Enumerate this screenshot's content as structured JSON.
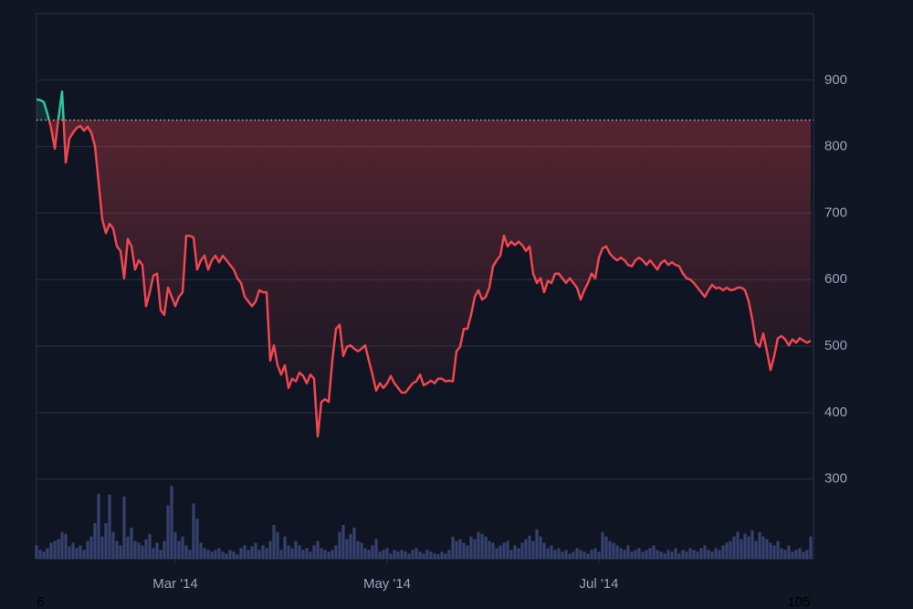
{
  "chart_data": {
    "type": "line",
    "values": [
      871,
      870,
      867,
      849,
      828,
      797,
      842,
      883,
      776,
      812,
      821,
      828,
      831,
      824,
      830,
      821,
      801,
      746,
      691,
      670,
      684,
      677,
      650,
      643,
      602,
      661,
      650,
      615,
      629,
      622,
      560,
      581,
      606,
      609,
      554,
      547,
      588,
      574,
      560,
      574,
      581,
      666,
      666,
      663,
      615,
      629,
      636,
      615,
      629,
      636,
      626,
      636,
      629,
      622,
      615,
      602,
      595,
      574,
      567,
      560,
      567,
      584,
      581,
      581,
      478,
      501,
      471,
      457,
      471,
      437,
      451,
      447,
      460,
      455,
      444,
      457,
      451,
      364,
      416,
      420,
      416,
      478,
      526,
      532,
      485,
      499,
      501,
      496,
      492,
      496,
      501,
      478,
      457,
      433,
      444,
      437,
      444,
      455,
      444,
      437,
      430,
      430,
      437,
      444,
      447,
      457,
      441,
      444,
      448,
      444,
      451,
      451,
      447,
      448,
      447,
      492,
      499,
      526,
      526,
      547,
      574,
      584,
      570,
      574,
      588,
      620,
      629,
      636,
      666,
      650,
      657,
      652,
      657,
      652,
      643,
      650,
      609,
      595,
      602,
      581,
      598,
      595,
      609,
      609,
      602,
      595,
      602,
      595,
      588,
      570,
      584,
      595,
      609,
      602,
      633,
      647,
      650,
      639,
      633,
      629,
      633,
      629,
      622,
      620,
      629,
      633,
      629,
      622,
      629,
      622,
      615,
      625,
      629,
      622,
      626,
      622,
      620,
      609,
      602,
      600,
      595,
      588,
      581,
      574,
      584,
      592,
      587,
      588,
      584,
      588,
      584,
      585,
      588,
      588,
      584,
      567,
      540,
      505,
      499,
      519,
      492,
      464,
      485,
      512,
      515,
      510,
      501,
      510,
      505,
      512,
      508,
      505,
      508
    ],
    "volume": [
      15,
      10,
      8,
      12,
      18,
      20,
      22,
      30,
      28,
      14,
      18,
      12,
      15,
      10,
      20,
      25,
      40,
      73,
      25,
      40,
      72,
      30,
      20,
      15,
      70,
      25,
      35,
      20,
      18,
      15,
      22,
      28,
      12,
      18,
      10,
      20,
      60,
      82,
      30,
      20,
      25,
      15,
      10,
      62,
      45,
      18,
      12,
      10,
      8,
      10,
      12,
      8,
      6,
      10,
      8,
      5,
      12,
      15,
      10,
      14,
      18,
      10,
      15,
      12,
      20,
      38,
      30,
      10,
      25,
      15,
      12,
      20,
      15,
      10,
      12,
      8,
      15,
      20,
      12,
      10,
      8,
      10,
      15,
      30,
      38,
      22,
      28,
      35,
      20,
      18,
      12,
      10,
      15,
      22,
      8,
      10,
      12,
      6,
      10,
      8,
      10,
      8,
      6,
      10,
      12,
      8,
      6,
      10,
      8,
      6,
      5,
      8,
      6,
      10,
      25,
      20,
      22,
      18,
      15,
      25,
      22,
      30,
      28,
      25,
      20,
      18,
      12,
      15,
      18,
      20,
      10,
      15,
      12,
      18,
      22,
      26,
      20,
      33,
      25,
      18,
      12,
      15,
      10,
      12,
      8,
      10,
      6,
      8,
      12,
      10,
      8,
      6,
      10,
      12,
      8,
      30,
      25,
      20,
      18,
      15,
      12,
      10,
      15,
      8,
      10,
      12,
      8,
      10,
      12,
      15,
      10,
      8,
      6,
      10,
      8,
      12,
      6,
      10,
      8,
      12,
      10,
      8,
      12,
      15,
      10,
      8,
      12,
      10,
      15,
      18,
      20,
      25,
      30,
      22,
      28,
      25,
      32,
      20,
      30,
      25,
      22,
      18,
      15,
      20,
      12,
      10,
      15,
      8,
      10,
      12,
      8,
      10,
      25
    ],
    "xlim": [
      0,
      212
    ],
    "xticks": [
      {
        "value": 38,
        "label": "Mar '14"
      },
      {
        "value": 96,
        "label": "May '14"
      },
      {
        "value": 154,
        "label": "Jul '14"
      }
    ],
    "ylim": [
      180,
      1000
    ],
    "yticks": [
      300,
      400,
      500,
      600,
      700,
      800,
      900
    ],
    "vlim": [
      0,
      85
    ],
    "baseline": 840,
    "up_color": "#2fc49a",
    "down_color": "#ef4651",
    "volume_color": "#35416e",
    "grid": true,
    "corner_labels": [
      "6",
      "105"
    ]
  }
}
